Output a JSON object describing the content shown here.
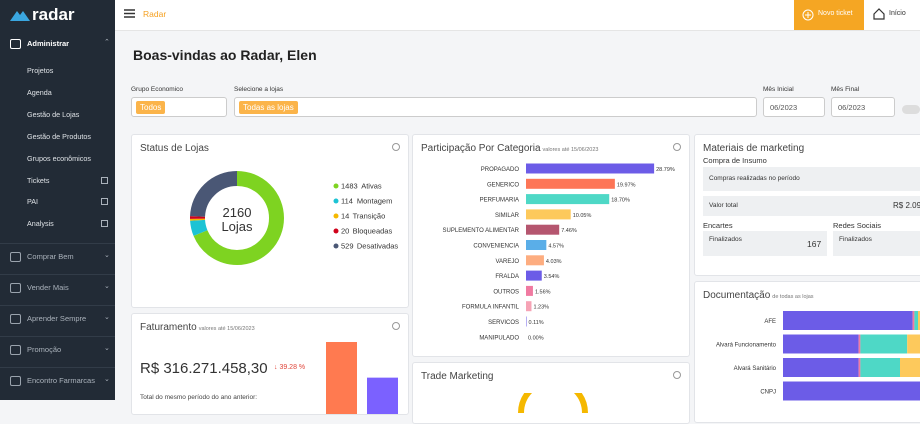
{
  "sidebar": {
    "logo": "radar",
    "sections": [
      {
        "label": "Administrar",
        "items": [
          "Projetos",
          "Agenda",
          "Gestão de Lojas",
          "Gestão de Produtos",
          "Grupos econômicos",
          "Tickets",
          "PAI",
          "Analysis"
        ]
      },
      {
        "label": "Comprar Bem"
      },
      {
        "label": "Vender Mais"
      },
      {
        "label": "Aprender Sempre"
      },
      {
        "label": "Promoção"
      },
      {
        "label": "Encontro Farmarcas"
      }
    ]
  },
  "topbar": {
    "title": "Radar",
    "new_ticket": "Novo ticket",
    "home": "Início"
  },
  "heading": "Boas-vindas ao Radar, Elen",
  "filters": {
    "group": {
      "label": "Grupo Economico",
      "value": "Todos"
    },
    "stores": {
      "label": "Selecione a lojas",
      "value": "Todas as lojas"
    },
    "start": {
      "label": "Mês Inicial",
      "value": "06/2023"
    },
    "end": {
      "label": "Mês Final",
      "value": "06/2023"
    }
  },
  "store_status": {
    "title": "Status de Lojas",
    "total": 2160,
    "total_label": "Lojas",
    "items": [
      {
        "value": 1483,
        "label": "Ativas",
        "color": "#7ed321"
      },
      {
        "value": 114,
        "label": "Montagem",
        "color": "#1cc3d4"
      },
      {
        "value": 14,
        "label": "Transição",
        "color": "#f5b800"
      },
      {
        "value": 20,
        "label": "Bloqueadas",
        "color": "#d0021b"
      },
      {
        "value": 529,
        "label": "Desativadas",
        "color": "#4a5775"
      }
    ]
  },
  "revenue": {
    "title": "Faturamento",
    "subtitle": "valores até 15/06/2023",
    "value": "R$ 316.271.458,30",
    "change": "39.28 %",
    "previous_label": "Total do mesmo período do ano anterior:",
    "bars": [
      {
        "value": 100,
        "color": "#ff7a50"
      },
      {
        "value": 64,
        "color": "#7b61ff"
      }
    ]
  },
  "category_share": {
    "title": "Participação Por Categoria",
    "subtitle": "valores até 15/06/2023",
    "categories": [
      "PROPAGADO",
      "GENERICO",
      "PERFUMARIA",
      "SIMILAR",
      "SUPLEMENTO ALIMENTAR",
      "CONVENIENCIA",
      "VAREJO",
      "FRALDA",
      "OUTROS",
      "FORMULA INFANTIL",
      "SERVICOS",
      "MANIPULADO"
    ],
    "values": [
      28.79,
      19.97,
      18.7,
      10.05,
      7.46,
      4.57,
      4.03,
      3.54,
      1.56,
      1.23,
      0.11,
      0.0
    ],
    "value_labels": [
      "28.79%",
      "19.97%",
      "18.70%",
      "10.05%",
      "7.46%",
      "4.57%",
      "4.03%",
      "3.54%",
      "1.56%",
      "1.23%",
      "0.11%",
      "0.00%"
    ],
    "colors": [
      "#6c5ce7",
      "#fd7657",
      "#4ed8c6",
      "#fdc95c",
      "#b5566f",
      "#5aaee8",
      "#fdad80",
      "#6c5ce7",
      "#f07aa1",
      "#f6a3b5",
      "#6c5ce7",
      "#6c5ce7"
    ]
  },
  "trade_marketing": {
    "title": "Trade Marketing"
  },
  "marketing_materials": {
    "title": "Materiais de marketing",
    "supplies": "Compra de Insumo",
    "purchases": "Compras realizadas no período",
    "total_label": "Valor total",
    "total_value": "R$ 2.09",
    "inserts": {
      "title": "Encartes",
      "label": "Finalizados",
      "value": 167
    },
    "social": {
      "title": "Redes Sociais",
      "label": "Finalizados"
    }
  },
  "documentation": {
    "title": "Documentação",
    "subtitle": "de todas as lojas",
    "categories": [
      "AFE",
      "Alvará Funcionamento",
      "Alvará Sanitário",
      "CNPJ"
    ],
    "series": [
      {
        "color": "#6c5ce7",
        "values": [
          72,
          42,
          42,
          100
        ]
      },
      {
        "color": "#f07aa1",
        "values": [
          1,
          1,
          1,
          0
        ]
      },
      {
        "color": "#4ed8c6",
        "values": [
          2,
          26,
          22,
          0
        ]
      },
      {
        "color": "#fdc95c",
        "values": [
          25,
          31,
          35,
          0
        ]
      }
    ]
  }
}
